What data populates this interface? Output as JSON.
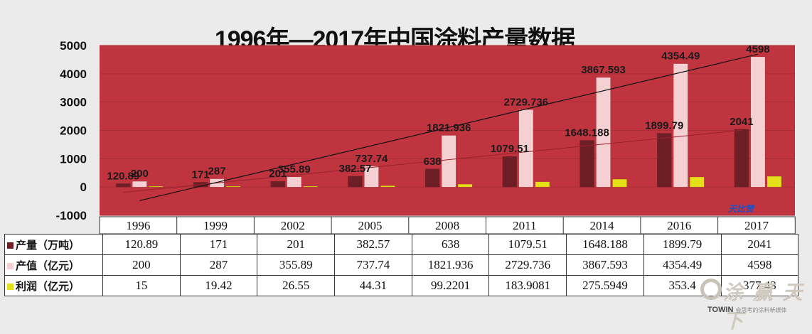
{
  "chart_data": {
    "type": "bar",
    "title": "1996年—2017年中国涂料产量数据",
    "categories": [
      "1996",
      "1999",
      "2002",
      "2005",
      "2008",
      "2011",
      "2014",
      "2016",
      "2017"
    ],
    "series": [
      {
        "name": "产量（万吨）",
        "color": "#6e1f26",
        "values": [
          120.89,
          171,
          201,
          382.57,
          638,
          1079.51,
          1648.188,
          1899.79,
          2041
        ],
        "labels": [
          "120.89",
          "171",
          "201",
          "382.57",
          "638",
          "1079.51",
          "1648.188",
          "1899.79",
          "2041"
        ],
        "table": [
          "120.89",
          "171",
          "201",
          "382.57",
          "638",
          "1079.51",
          "1648.188",
          "1899.79",
          "2041"
        ]
      },
      {
        "name": "产值（亿元）",
        "color": "#f4d0d3",
        "values": [
          200,
          287,
          355.89,
          737.74,
          1821.936,
          2729.736,
          3867.593,
          4354.49,
          4598
        ],
        "labels": [
          "200",
          "287",
          "355.89",
          "737.74",
          "1821.936",
          "2729.736",
          "3867.593",
          "4354.49",
          "4598"
        ],
        "table": [
          "200",
          "287",
          "355.89",
          "737.74",
          "1821.936",
          "2729.736",
          "3867.593",
          "4354.49",
          "4598"
        ]
      },
      {
        "name": "利润（亿元）",
        "color": "#e4e01a",
        "values": [
          15,
          19.42,
          26.55,
          44.31,
          99.2201,
          183.9081,
          275.5949,
          353.4,
          377.43
        ],
        "table": [
          "15",
          "19.42",
          "26.55",
          "44.31",
          "99.2201",
          "183.9081",
          "275.5949",
          "353.4",
          "377.43"
        ]
      }
    ],
    "ylim": [
      -1000,
      5000
    ],
    "yticks": [
      "-1000",
      "0",
      "1000",
      "2000",
      "3000",
      "4000",
      "5000"
    ],
    "plot_background": "#c0343f",
    "grid": true,
    "trendlines": true,
    "legend": "data-table"
  },
  "watermark": {
    "text": "涂 赢 天 下",
    "brand": "TOWIN",
    "brand_sub": "会思考的涂料新媒体"
  },
  "stamp": "天比赞"
}
